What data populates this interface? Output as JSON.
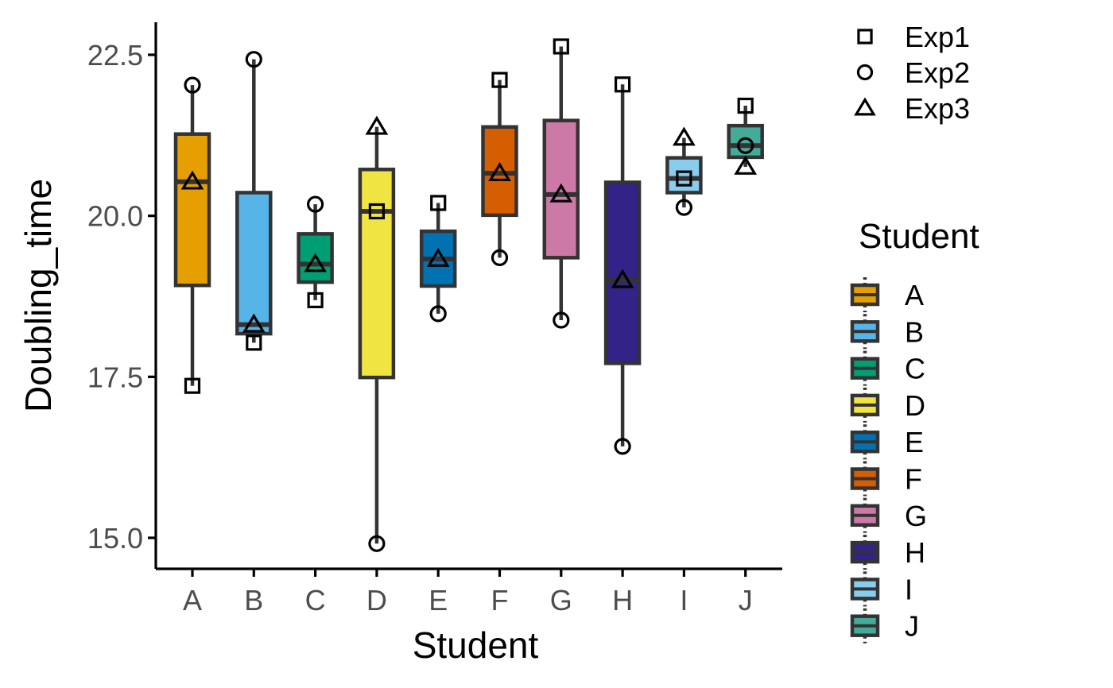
{
  "chart_data": {
    "type": "box",
    "xlabel": "Student",
    "ylabel": "Doubling_time",
    "ylim": [
      14.6,
      23.1
    ],
    "yticks": [
      15.0,
      17.5,
      20.0,
      22.5
    ],
    "ytick_labels": [
      "15.0",
      "17.5",
      "20.0",
      "22.5"
    ],
    "categories": [
      "A",
      "B",
      "C",
      "D",
      "E",
      "F",
      "G",
      "H",
      "I",
      "J"
    ],
    "colors": [
      "#E69F00",
      "#56B4E9",
      "#009E73",
      "#F0E442",
      "#0072B2",
      "#D55E00",
      "#CC79A7",
      "#332288",
      "#88CCEE",
      "#44AA99"
    ],
    "boxes": [
      {
        "student": "A",
        "q1": 18.92,
        "median": 20.53,
        "q3": 21.27,
        "whisker_low": 17.36,
        "whisker_high": 22.03
      },
      {
        "student": "B",
        "q1": 18.17,
        "median": 18.31,
        "q3": 20.36,
        "whisker_low": 18.03,
        "whisker_high": 22.43
      },
      {
        "student": "C",
        "q1": 18.97,
        "median": 19.25,
        "q3": 19.72,
        "whisker_low": 18.69,
        "whisker_high": 20.18
      },
      {
        "student": "D",
        "q1": 17.49,
        "median": 20.07,
        "q3": 20.72,
        "whisker_low": 14.91,
        "whisker_high": 21.38
      },
      {
        "student": "E",
        "q1": 18.91,
        "median": 19.33,
        "q3": 19.76,
        "whisker_low": 18.48,
        "whisker_high": 20.2
      },
      {
        "student": "F",
        "q1": 20.01,
        "median": 20.66,
        "q3": 21.38,
        "whisker_low": 19.35,
        "whisker_high": 22.11
      },
      {
        "student": "G",
        "q1": 19.35,
        "median": 20.33,
        "q3": 21.48,
        "whisker_low": 18.38,
        "whisker_high": 22.63
      },
      {
        "student": "H",
        "q1": 17.71,
        "median": 19.0,
        "q3": 20.52,
        "whisker_low": 16.42,
        "whisker_high": 22.04
      },
      {
        "student": "I",
        "q1": 20.36,
        "median": 20.58,
        "q3": 20.9,
        "whisker_low": 20.13,
        "whisker_high": 21.21
      },
      {
        "student": "J",
        "q1": 20.91,
        "median": 21.09,
        "q3": 21.4,
        "whisker_low": 20.76,
        "whisker_high": 21.71
      }
    ],
    "points": [
      {
        "student": "A",
        "exp": "Exp1",
        "value": 17.36
      },
      {
        "student": "A",
        "exp": "Exp2",
        "value": 22.03
      },
      {
        "student": "A",
        "exp": "Exp3",
        "value": 20.53
      },
      {
        "student": "B",
        "exp": "Exp1",
        "value": 18.03
      },
      {
        "student": "B",
        "exp": "Exp2",
        "value": 22.43
      },
      {
        "student": "B",
        "exp": "Exp3",
        "value": 18.31
      },
      {
        "student": "C",
        "exp": "Exp1",
        "value": 18.69
      },
      {
        "student": "C",
        "exp": "Exp2",
        "value": 20.18
      },
      {
        "student": "C",
        "exp": "Exp3",
        "value": 19.25
      },
      {
        "student": "D",
        "exp": "Exp1",
        "value": 20.07
      },
      {
        "student": "D",
        "exp": "Exp2",
        "value": 14.91
      },
      {
        "student": "D",
        "exp": "Exp3",
        "value": 21.38
      },
      {
        "student": "E",
        "exp": "Exp1",
        "value": 20.2
      },
      {
        "student": "E",
        "exp": "Exp2",
        "value": 18.48
      },
      {
        "student": "E",
        "exp": "Exp3",
        "value": 19.33
      },
      {
        "student": "F",
        "exp": "Exp1",
        "value": 22.11
      },
      {
        "student": "F",
        "exp": "Exp2",
        "value": 19.35
      },
      {
        "student": "F",
        "exp": "Exp3",
        "value": 20.66
      },
      {
        "student": "G",
        "exp": "Exp1",
        "value": 22.63
      },
      {
        "student": "G",
        "exp": "Exp2",
        "value": 18.38
      },
      {
        "student": "G",
        "exp": "Exp3",
        "value": 20.33
      },
      {
        "student": "H",
        "exp": "Exp1",
        "value": 22.04
      },
      {
        "student": "H",
        "exp": "Exp2",
        "value": 16.42
      },
      {
        "student": "H",
        "exp": "Exp3",
        "value": 19.0
      },
      {
        "student": "I",
        "exp": "Exp1",
        "value": 20.58
      },
      {
        "student": "I",
        "exp": "Exp2",
        "value": 20.13
      },
      {
        "student": "I",
        "exp": "Exp3",
        "value": 21.21
      },
      {
        "student": "J",
        "exp": "Exp1",
        "value": 21.71
      },
      {
        "student": "J",
        "exp": "Exp2",
        "value": 21.09
      },
      {
        "student": "J",
        "exp": "Exp3",
        "value": 20.76
      }
    ],
    "shape_legend": {
      "entries": [
        {
          "label": "Exp1",
          "shape": "square"
        },
        {
          "label": "Exp2",
          "shape": "circle"
        },
        {
          "label": "Exp3",
          "shape": "triangle"
        }
      ]
    },
    "fill_legend": {
      "title": "Student",
      "entries": [
        "A",
        "B",
        "C",
        "D",
        "E",
        "F",
        "G",
        "H",
        "I",
        "J"
      ]
    },
    "legend_position": "right",
    "grid": false
  }
}
